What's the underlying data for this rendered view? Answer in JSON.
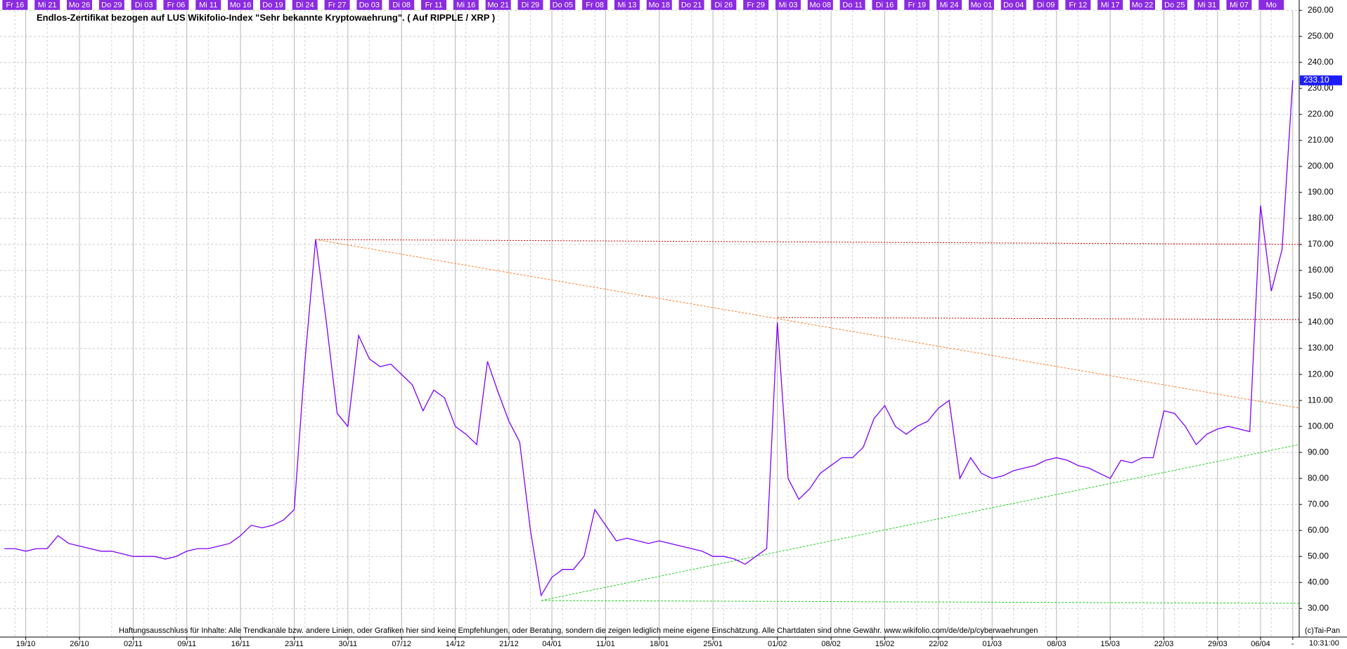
{
  "chart_data": {
    "type": "line",
    "title": "Endlos-Zertifikat bezogen auf LUS Wikifolio-Index \"Sehr bekannte Kryptowaehrung\". ( Auf RIPPLE / XRP )",
    "categories": [
      null,
      null,
      "19/10",
      null,
      null,
      null,
      null,
      "26/10",
      null,
      null,
      null,
      null,
      "02/11",
      null,
      null,
      null,
      null,
      "09/11",
      null,
      null,
      null,
      null,
      "16/11",
      null,
      null,
      null,
      null,
      "23/11",
      null,
      null,
      null,
      null,
      "30/11",
      null,
      null,
      null,
      null,
      "07/12",
      null,
      null,
      null,
      null,
      "14/12",
      null,
      null,
      null,
      null,
      "21/12",
      null,
      null,
      null,
      "04/01",
      null,
      null,
      null,
      null,
      "11/01",
      null,
      null,
      null,
      null,
      "18/01",
      null,
      null,
      null,
      null,
      "25/01",
      null,
      null,
      null,
      null,
      null,
      "01/02",
      null,
      null,
      null,
      null,
      "08/02",
      null,
      null,
      null,
      null,
      "15/02",
      null,
      null,
      null,
      null,
      "22/02",
      null,
      null,
      null,
      null,
      "01/03",
      null,
      null,
      null,
      null,
      null,
      "08/03",
      null,
      null,
      null,
      null,
      "15/03",
      null,
      null,
      null,
      null,
      "22/03",
      null,
      null,
      null,
      null,
      "29/03",
      null,
      null,
      null,
      "06/04",
      null,
      null,
      "-"
    ],
    "top_labels": [
      null,
      "Fr 16",
      null,
      null,
      "Mi 21",
      null,
      null,
      "Mo 26",
      null,
      null,
      "Do 29",
      null,
      null,
      "Di 03",
      null,
      null,
      "Fr 06",
      null,
      null,
      "Mi 11",
      null,
      null,
      "Mo 16",
      null,
      null,
      "Do 19",
      null,
      null,
      "Di 24",
      null,
      null,
      "Fr 27",
      null,
      null,
      "Do 03",
      null,
      null,
      "Di 08",
      null,
      null,
      "Fr 11",
      null,
      null,
      "Mi 16",
      null,
      null,
      "Mo 21",
      null,
      null,
      "Di 29",
      null,
      null,
      "Do 05",
      null,
      null,
      "Fr 08",
      null,
      null,
      "Mi 13",
      null,
      null,
      "Mo 18",
      null,
      null,
      "Do 21",
      null,
      null,
      "Di 26",
      null,
      null,
      "Fr 29",
      null,
      null,
      "Mi 03",
      null,
      null,
      "Mo 08",
      null,
      null,
      "Do 11",
      null,
      null,
      "Di 16",
      null,
      null,
      "Fr 19",
      null,
      null,
      "Mi 24",
      null,
      null,
      "Mo 01",
      null,
      null,
      "Do 04",
      null,
      null,
      "Di 09",
      null,
      null,
      "Fr 12",
      null,
      null,
      "Mi 17",
      null,
      null,
      "Mo 22",
      null,
      null,
      "Do 25",
      null,
      null,
      "Mi 31",
      null,
      null,
      "Mi 07",
      null,
      null,
      "Mo",
      null,
      null
    ],
    "values": [
      53,
      53,
      52,
      53,
      53,
      58,
      55,
      54,
      53,
      52,
      52,
      51,
      50,
      50,
      50,
      49,
      50,
      52,
      53,
      53,
      54,
      55,
      58,
      62,
      61,
      62,
      64,
      68,
      125,
      172,
      140,
      105,
      100,
      135,
      126,
      123,
      124,
      120,
      116,
      106,
      114,
      111,
      100,
      97,
      93,
      125,
      113,
      102,
      94,
      60,
      35,
      42,
      45,
      45,
      50,
      68,
      62,
      56,
      57,
      56,
      55,
      56,
      55,
      54,
      53,
      52,
      50,
      50,
      49,
      47,
      50,
      53,
      140,
      80,
      72,
      76,
      82,
      85,
      88,
      88,
      92,
      103,
      108,
      100,
      97,
      100,
      102,
      107,
      110,
      80,
      88,
      82,
      80,
      81,
      83,
      84,
      85,
      87,
      88,
      87,
      85,
      84,
      82,
      80,
      87,
      86,
      88,
      88,
      106,
      105,
      100,
      93,
      97,
      99,
      100,
      99,
      98,
      185,
      152,
      168,
      233.1
    ],
    "value_labels": [
      null,
      null,
      null,
      null,
      null,
      null,
      null,
      null,
      null,
      null,
      null,
      null,
      null,
      null,
      null,
      null,
      null,
      null,
      null,
      null,
      null,
      null,
      null,
      null,
      null,
      null,
      null,
      null,
      null,
      null,
      null,
      null,
      null,
      null,
      null,
      null,
      null,
      null,
      null,
      null,
      null,
      null,
      null,
      null,
      null,
      null,
      null,
      null,
      null,
      null,
      null,
      null,
      null,
      null,
      null,
      null,
      null,
      null,
      null,
      null,
      null,
      null,
      null,
      null,
      null,
      null,
      null,
      null,
      null,
      null,
      null,
      null,
      null,
      null,
      null,
      null,
      null,
      null,
      null,
      null,
      null,
      null,
      null,
      null,
      null,
      null,
      null,
      null,
      null,
      null,
      null,
      null,
      null,
      null,
      null,
      null,
      null,
      null,
      null,
      null,
      null,
      null,
      null,
      null,
      null,
      null,
      null,
      null,
      null,
      null,
      null,
      null,
      null,
      null,
      null,
      null,
      null,
      null,
      null,
      null,
      "233.10"
    ],
    "color": "#7f00ff",
    "ylim": [
      19,
      264
    ],
    "yticks": [
      {
        "value": 30,
        "label": "30.00"
      },
      {
        "value": 40,
        "label": "40.00"
      },
      {
        "value": 50,
        "label": "50.00"
      },
      {
        "value": 60,
        "label": "60.00"
      },
      {
        "value": 70,
        "label": "70.00"
      },
      {
        "value": 80,
        "label": "80.00"
      },
      {
        "value": 90,
        "label": "90.00"
      },
      {
        "value": 100,
        "label": "100.00"
      },
      {
        "value": 110,
        "label": "110.00"
      },
      {
        "value": 120,
        "label": "120.00"
      },
      {
        "value": 130,
        "label": "130.00"
      },
      {
        "value": 140,
        "label": "140.00"
      },
      {
        "value": 150,
        "label": "150.00"
      },
      {
        "value": 160,
        "label": "160.00"
      },
      {
        "value": 170,
        "label": "170.00"
      },
      {
        "value": 180,
        "label": "180.00"
      },
      {
        "value": 190,
        "label": "190.00"
      },
      {
        "value": 200,
        "label": "200.00"
      },
      {
        "value": 210,
        "label": "210.00"
      },
      {
        "value": 220,
        "label": "220.00"
      },
      {
        "value": 230,
        "label": "230.00"
      },
      {
        "value": 240,
        "label": "240.00"
      },
      {
        "value": 250,
        "label": "250.00"
      },
      {
        "value": 260,
        "label": "260.00"
      }
    ],
    "grid": true,
    "time_label": "10:31:00",
    "disclaimer": "Haftungsausschluss für Inhalte: Alle Trendkanäle bzw. andere Linien, oder Grafiken hier sind keine Empfehlungen, oder Beratung, sondern die zeigen lediglich meine eigene Einschätzung. Alle Chartdaten sind ohne Gewähr.  www.wikifolio.com/de/de/p/cyberwaehrungen",
    "copyright": "(c)Tai-Pan"
  }
}
